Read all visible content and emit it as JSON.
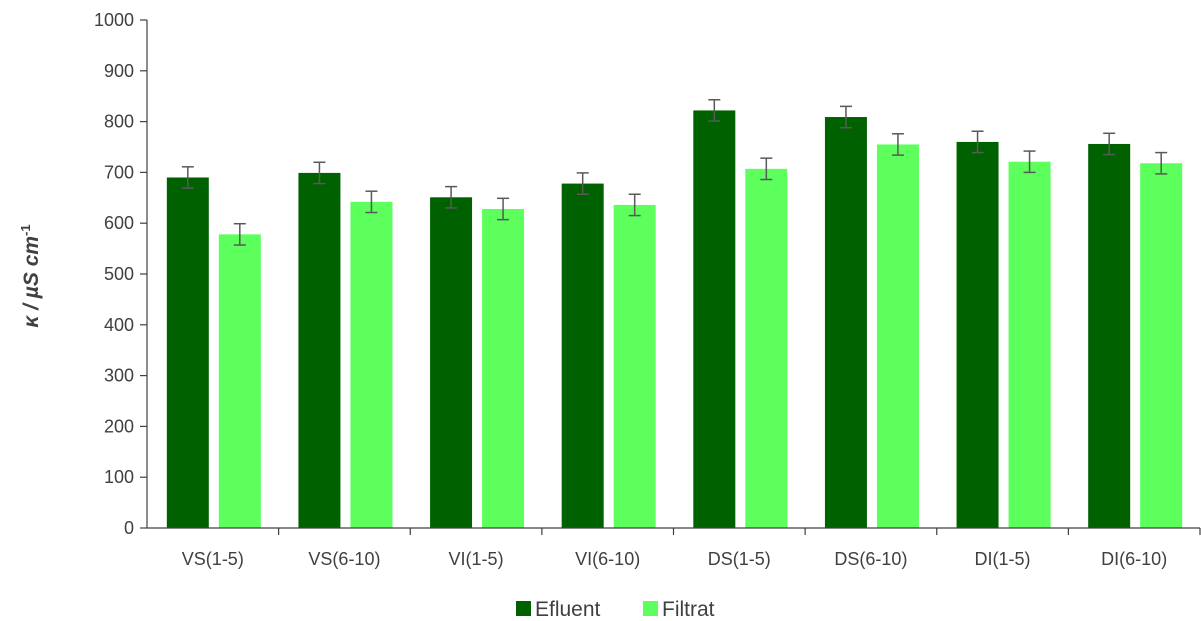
{
  "chart_data": {
    "type": "bar",
    "categories": [
      "VS(1-5)",
      "VS(6-10)",
      "VI(1-5)",
      "VI(6-10)",
      "DS(1-5)",
      "DS(6-10)",
      "DI(1-5)",
      "DI(6-10)"
    ],
    "series": [
      {
        "name": "Efluent",
        "color": "#006100",
        "values": [
          690,
          699,
          651,
          678,
          822,
          809,
          760,
          756
        ],
        "errors": [
          21,
          21,
          21,
          21,
          21,
          21,
          21,
          21
        ]
      },
      {
        "name": "Filtrat",
        "color": "#5cff5c",
        "values": [
          578,
          642,
          628,
          636,
          707,
          755,
          721,
          718
        ],
        "errors": [
          21,
          21,
          21,
          21,
          21,
          21,
          21,
          21
        ]
      }
    ],
    "ylabel_main": "κ / µS cm",
    "ylabel_sup": "-1",
    "xlabel": "",
    "ylim": [
      0,
      1000
    ],
    "yticks": [
      0,
      100,
      200,
      300,
      400,
      500,
      600,
      700,
      800,
      900,
      1000
    ],
    "grid": false,
    "legend_position": "bottom",
    "error_bar_color": "#595959"
  }
}
